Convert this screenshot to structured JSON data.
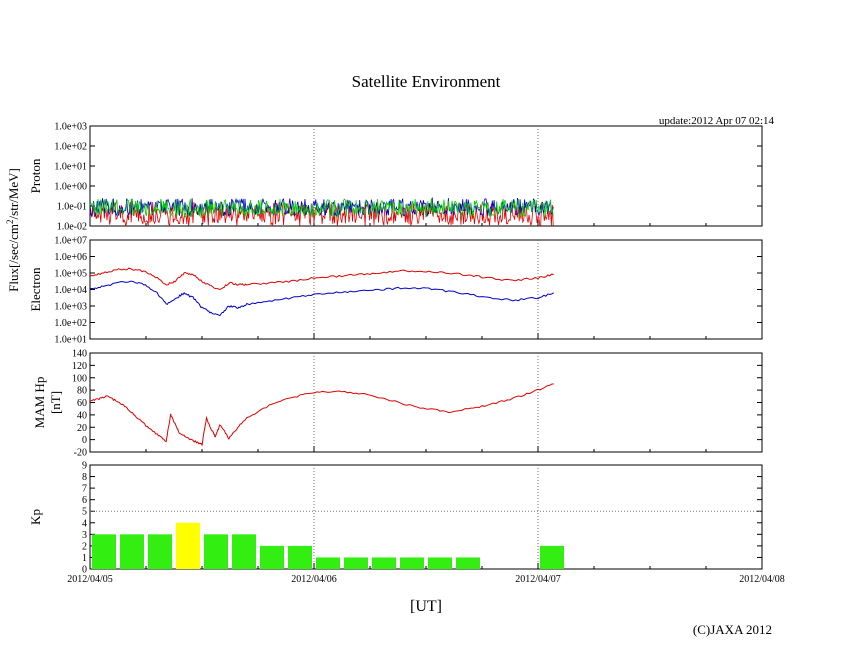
{
  "title": "Satellite Environment",
  "update": "update:2012 Apr 07 02:14",
  "copyright": "(C)JAXA 2012",
  "xlabel": "[UT]",
  "flux_label": "Flux[/sec/cm",
  "flux_label_sup": "2",
  "flux_label_rest": "/str/MeV]",
  "colors": {
    "red": "#e00000",
    "blue": "#0000cc",
    "green": "#00cc00",
    "kp_green": "#33ee11",
    "kp_yellow": "#ffff00",
    "grid": "#777777"
  },
  "chart_data": [
    {
      "type": "line",
      "panel": "proton",
      "ylabel": "Proton",
      "yscale": "log",
      "yticks": [
        "1.0e-02",
        "1.0e-01",
        "1.0e+00",
        "1.0e+01",
        "1.0e+02",
        "1.0e+03"
      ],
      "ylim": [
        -2,
        3
      ],
      "xlim": [
        0,
        3
      ],
      "series": [
        {
          "name": "proton-red",
          "color": "red",
          "x": [
            0,
            2.07
          ],
          "y": [
            -1.6,
            -1.6
          ]
        },
        {
          "name": "proton-blue",
          "color": "blue",
          "x": [
            0,
            2.07
          ],
          "y": [
            -1.0,
            -1.0
          ]
        },
        {
          "name": "proton-green",
          "color": "green",
          "x": [
            0,
            2.07
          ],
          "y": [
            -1.05,
            -1.05
          ]
        }
      ]
    },
    {
      "type": "line",
      "panel": "electron",
      "ylabel": "Electron",
      "yscale": "log",
      "yticks": [
        "1.0e+01",
        "1.0e+02",
        "1.0e+03",
        "1.0e+04",
        "1.0e+05",
        "1.0e+06",
        "1.0e+07"
      ],
      "ylim": [
        1,
        7
      ],
      "xlim": [
        0,
        3
      ],
      "series": [
        {
          "name": "electron-high",
          "color": "red",
          "x": [
            0,
            0.06,
            0.12,
            0.18,
            0.24,
            0.3,
            0.34,
            0.38,
            0.42,
            0.46,
            0.5,
            0.54,
            0.58,
            0.62,
            0.66,
            0.7,
            0.8,
            0.9,
            1.0,
            1.1,
            1.2,
            1.3,
            1.4,
            1.5,
            1.6,
            1.7,
            1.8,
            1.9,
            2.0,
            2.07
          ],
          "y": [
            4.8,
            5.0,
            5.2,
            5.25,
            5.1,
            4.7,
            4.3,
            4.5,
            5.0,
            4.9,
            4.5,
            4.2,
            4.0,
            4.4,
            4.3,
            4.3,
            4.4,
            4.5,
            4.7,
            4.8,
            4.9,
            5.0,
            5.15,
            5.1,
            5.0,
            4.85,
            4.65,
            4.55,
            4.7,
            4.9
          ]
        },
        {
          "name": "electron-low",
          "color": "blue",
          "x": [
            0,
            0.06,
            0.12,
            0.18,
            0.24,
            0.3,
            0.34,
            0.38,
            0.42,
            0.46,
            0.5,
            0.54,
            0.58,
            0.62,
            0.66,
            0.7,
            0.8,
            0.9,
            1.0,
            1.1,
            1.2,
            1.3,
            1.4,
            1.5,
            1.6,
            1.7,
            1.8,
            1.9,
            2.0,
            2.07
          ],
          "y": [
            4.0,
            4.2,
            4.4,
            4.5,
            4.3,
            3.8,
            3.1,
            3.4,
            3.8,
            3.5,
            2.9,
            2.6,
            2.4,
            3.0,
            2.9,
            3.1,
            3.3,
            3.5,
            3.7,
            3.8,
            3.9,
            4.0,
            4.1,
            4.05,
            3.9,
            3.7,
            3.45,
            3.35,
            3.5,
            3.8
          ]
        }
      ]
    },
    {
      "type": "line",
      "panel": "hp",
      "ylabel": "MAM Hp",
      "ylabel2": "[nT]",
      "yticks": [
        "-20",
        "0",
        "20",
        "40",
        "60",
        "80",
        "100",
        "120",
        "140"
      ],
      "ylim": [
        -20,
        140
      ],
      "xlim": [
        0,
        3
      ],
      "series": [
        {
          "name": "hp",
          "color": "red",
          "x": [
            0,
            0.04,
            0.08,
            0.12,
            0.16,
            0.2,
            0.25,
            0.3,
            0.34,
            0.36,
            0.38,
            0.4,
            0.44,
            0.48,
            0.5,
            0.52,
            0.54,
            0.56,
            0.58,
            0.62,
            0.66,
            0.7,
            0.8,
            0.9,
            1.0,
            1.1,
            1.2,
            1.3,
            1.4,
            1.5,
            1.6,
            1.7,
            1.8,
            1.9,
            2.0,
            2.07
          ],
          "y": [
            62,
            66,
            70,
            62,
            52,
            40,
            22,
            8,
            -2,
            40,
            25,
            10,
            2,
            -5,
            -8,
            35,
            18,
            4,
            25,
            2,
            20,
            35,
            55,
            68,
            76,
            78,
            75,
            68,
            58,
            50,
            45,
            50,
            58,
            68,
            80,
            90
          ]
        }
      ]
    },
    {
      "type": "bar",
      "panel": "kp",
      "ylabel": "Kp",
      "yticks": [
        "0",
        "1",
        "2",
        "3",
        "4",
        "5",
        "6",
        "7",
        "8",
        "9"
      ],
      "ylim": [
        0,
        9
      ],
      "xlim": [
        0,
        3
      ],
      "bar_width_days": 0.125,
      "bars": [
        {
          "x": 0.0625,
          "value": 3
        },
        {
          "x": 0.1875,
          "value": 3
        },
        {
          "x": 0.3125,
          "value": 3
        },
        {
          "x": 0.4375,
          "value": 4
        },
        {
          "x": 0.5625,
          "value": 3
        },
        {
          "x": 0.6875,
          "value": 3
        },
        {
          "x": 0.8125,
          "value": 2
        },
        {
          "x": 0.9375,
          "value": 2
        },
        {
          "x": 1.0625,
          "value": 1
        },
        {
          "x": 1.1875,
          "value": 1
        },
        {
          "x": 1.3125,
          "value": 1
        },
        {
          "x": 1.4375,
          "value": 1
        },
        {
          "x": 1.5625,
          "value": 1
        },
        {
          "x": 1.6875,
          "value": 1
        },
        {
          "x": 2.0625,
          "value": 2
        }
      ],
      "threshold": 4,
      "dashed_level": 5
    }
  ],
  "xticks": [
    "2012/04/05",
    "2012/04/06",
    "2012/04/07",
    "2012/04/08"
  ]
}
